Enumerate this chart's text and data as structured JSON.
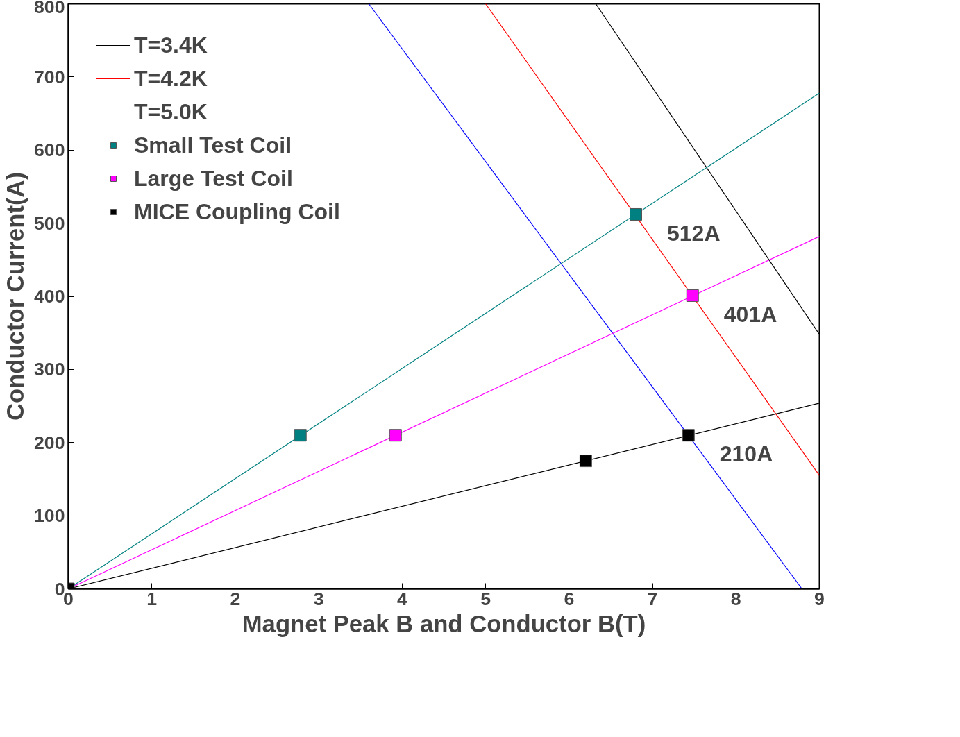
{
  "chart_data": {
    "type": "line",
    "xlabel": "Magnet Peak B and Conductor B(T)",
    "ylabel": "Conductor Current(A)",
    "xlim": [
      0,
      9
    ],
    "ylim": [
      0,
      800
    ],
    "xticks": [
      0,
      1,
      2,
      3,
      4,
      5,
      6,
      7,
      8,
      9
    ],
    "yticks": [
      0,
      100,
      200,
      300,
      400,
      500,
      600,
      700,
      800
    ],
    "grid": false,
    "legend": "top left",
    "series": [
      {
        "name": "T=3.4K",
        "color": "#000000",
        "x": [
          6.32,
          9
        ],
        "values": [
          800,
          348
        ]
      },
      {
        "name": "T=4.2K",
        "color": "#ff0000",
        "x": [
          5.0,
          9
        ],
        "values": [
          800,
          155
        ]
      },
      {
        "name": "T=5.0K",
        "color": "#0000ff",
        "x": [
          3.6,
          8.79
        ],
        "values": [
          800,
          0
        ]
      },
      {
        "color": "#008080",
        "x": [
          0,
          9
        ],
        "values": [
          0,
          678
        ]
      },
      {
        "color": "#ff00ff",
        "x": [
          0,
          9
        ],
        "values": [
          0,
          482
        ]
      },
      {
        "color": "#000000",
        "x": [
          0,
          9
        ],
        "values": [
          0,
          254
        ]
      },
      {
        "name": "Small Test Coil",
        "color": "#008080",
        "type": "scatter",
        "marker": "square",
        "x": [
          2.78,
          6.8
        ],
        "values": [
          210,
          512
        ]
      },
      {
        "name": "Large Test Coil",
        "color": "#ff00ff",
        "type": "scatter",
        "marker": "square",
        "x": [
          3.92,
          7.48
        ],
        "values": [
          210,
          401
        ]
      },
      {
        "name": "MICE Coupling Coil",
        "color": "#000000",
        "type": "scatter",
        "marker": "square",
        "x": [
          0,
          6.2,
          7.43
        ],
        "values": [
          0,
          175,
          210
        ]
      }
    ],
    "annotations": [
      {
        "text": "512A",
        "x": 6.8,
        "y": 512
      },
      {
        "text": "401A",
        "x": 7.48,
        "y": 401
      },
      {
        "text": "210A",
        "x": 7.43,
        "y": 210
      }
    ]
  }
}
